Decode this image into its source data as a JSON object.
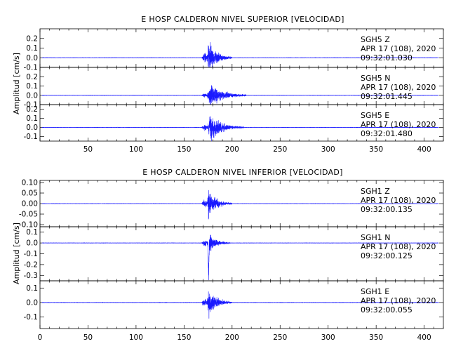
{
  "chart_data": [
    {
      "type": "line",
      "title": "E HOSP CALDERON NIVEL SUPERIOR [VELOCIDAD]",
      "ylabel": "Amplitud [cm/s]",
      "xlim": [
        0,
        420
      ],
      "xticks": [
        "50",
        "100",
        "150",
        "200",
        "250",
        "300",
        "350",
        "400"
      ],
      "grid": false,
      "series": [
        {
          "name": "SGH5 Z",
          "date": "APR 17 (108), 2020",
          "time": "09:32:01.030",
          "ylim": [
            -0.1,
            0.3
          ],
          "yticks": [
            "0.2",
            "0.1",
            "0.0",
            "-0.1"
          ],
          "color": "#1a1aff",
          "trace": {
            "noise": 0.004,
            "events": [
              {
                "start": 168,
                "peak": 172,
                "end": 178,
                "amp": 0.08
              },
              {
                "start": 174,
                "peak": 175.5,
                "end": 200,
                "amp": 0.26
              }
            ]
          }
        },
        {
          "name": "SGH5 N",
          "date": "APR 17 (108), 2020",
          "time": "09:32:01.445",
          "ylim": [
            -0.1,
            0.3
          ],
          "yticks": [
            "0.2",
            "0.1",
            "0.0",
            "-0.1"
          ],
          "color": "#1a1aff",
          "trace": {
            "noise": 0.004,
            "events": [
              {
                "start": 168,
                "peak": 172,
                "end": 178,
                "amp": 0.04
              },
              {
                "start": 174,
                "peak": 177,
                "end": 215,
                "amp": 0.2
              }
            ]
          }
        },
        {
          "name": "SGH5 E",
          "date": "APR 17 (108), 2020",
          "time": "09:32:01.480",
          "ylim": [
            -0.15,
            0.25
          ],
          "yticks": [
            "0.2",
            "0.1",
            "0.0",
            "-0.1"
          ],
          "color": "#1a1aff",
          "trace": {
            "noise": 0.004,
            "events": [
              {
                "start": 168,
                "peak": 172,
                "end": 178,
                "amp": 0.06
              },
              {
                "start": 174,
                "peak": 178,
                "end": 212,
                "amp": 0.22
              }
            ]
          }
        }
      ]
    },
    {
      "type": "line",
      "title": "E HOSP CALDERON NIVEL INFERIOR [VELOCIDAD]",
      "ylabel": "Amplitud [cm/s]",
      "xlim": [
        0,
        420
      ],
      "xticks": [
        "0",
        "50",
        "100",
        "150",
        "200",
        "250",
        "300",
        "350",
        "400"
      ],
      "grid": false,
      "series": [
        {
          "name": "SGH1 Z",
          "date": "APR 17 (108), 2020",
          "time": "09:32:00.135",
          "ylim": [
            -0.11,
            0.11
          ],
          "yticks": [
            "0.10",
            "0.05",
            "0.00",
            "-0.05",
            "-0.10"
          ],
          "color": "#1a1aff",
          "trace": {
            "noise": 0.0015,
            "events": [
              {
                "start": 168,
                "peak": 172,
                "end": 178,
                "amp": 0.03
              },
              {
                "start": 174,
                "peak": 175.5,
                "end": 200,
                "amp": 0.1
              }
            ]
          }
        },
        {
          "name": "SGH1 N",
          "date": "APR 17 (108), 2020",
          "time": "09:32:00.125",
          "ylim": [
            -0.35,
            0.15
          ],
          "yticks": [
            "0.1",
            "0.0",
            "-0.1",
            "-0.2",
            "-0.3"
          ],
          "color": "#1a1aff",
          "trace": {
            "noise": 0.003,
            "events": [
              {
                "start": 168,
                "peak": 172,
                "end": 178,
                "amp": 0.05
              },
              {
                "start": 174,
                "peak": 175.5,
                "end": 198,
                "amp": 0.13
              },
              {
                "start": 175,
                "peak": 175.6,
                "end": 177,
                "amp": 0.3,
                "sign": -1
              }
            ]
          }
        },
        {
          "name": "SGH1 E",
          "date": "APR 17 (108), 2020",
          "time": "09:32:00.055",
          "ylim": [
            -0.18,
            0.15
          ],
          "yticks": [
            "0.1",
            "0.0",
            "-0.1"
          ],
          "color": "#1a1aff",
          "trace": {
            "noise": 0.003,
            "events": [
              {
                "start": 168,
                "peak": 172,
                "end": 178,
                "amp": 0.05
              },
              {
                "start": 174,
                "peak": 175.5,
                "end": 200,
                "amp": 0.14
              }
            ]
          }
        }
      ]
    }
  ]
}
